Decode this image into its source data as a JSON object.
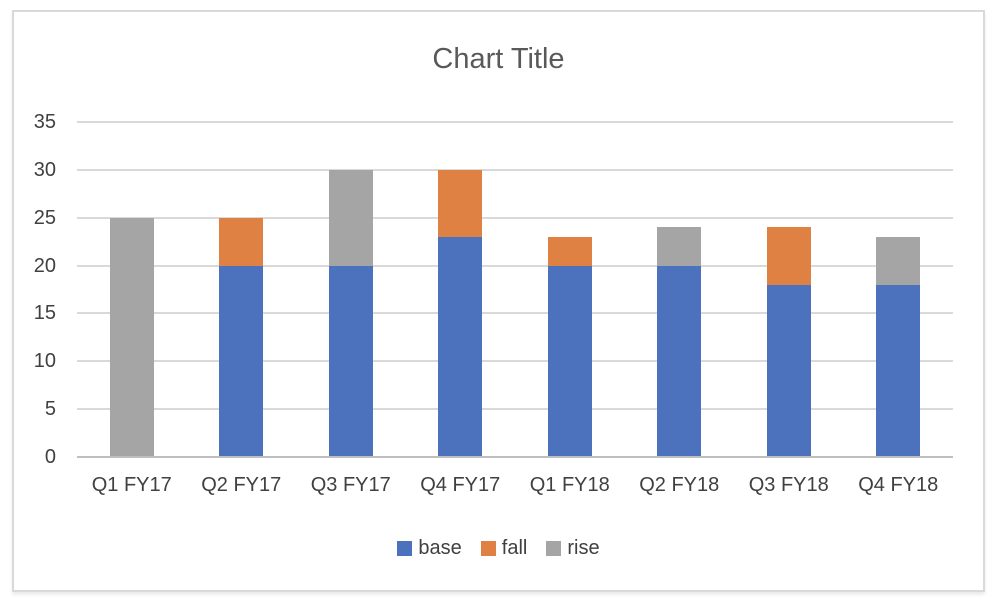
{
  "page": {
    "background": "#ffffff",
    "frame_border_color": "#d9d9d9"
  },
  "chart_data": {
    "type": "bar",
    "stacked": true,
    "title": "Chart Title",
    "title_color": "#595959",
    "label_color": "#404040",
    "gridline_color": "#d9d9d9",
    "axis_line_color": "#bfbfbf",
    "categories": [
      "Q1 FY17",
      "Q2 FY17",
      "Q3 FY17",
      "Q4 FY17",
      "Q1 FY18",
      "Q2 FY18",
      "Q3 FY18",
      "Q4 FY18"
    ],
    "series": [
      {
        "name": "base",
        "color": "#4c72be",
        "values": [
          0,
          20,
          20,
          23,
          20,
          20,
          18,
          18
        ]
      },
      {
        "name": "fall",
        "color": "#e08144",
        "values": [
          0,
          5,
          0,
          7,
          3,
          0,
          6,
          0
        ]
      },
      {
        "name": "rise",
        "color": "#a5a5a5",
        "values": [
          25,
          0,
          10,
          0,
          0,
          4,
          0,
          5
        ]
      }
    ],
    "totals": [
      25,
      25,
      30,
      30,
      23,
      24,
      24,
      23
    ],
    "xlabel": "",
    "ylabel": "",
    "ylim": [
      0,
      35
    ],
    "yticks": [
      0,
      5,
      10,
      15,
      20,
      25,
      30,
      35
    ],
    "grid": true,
    "legend_position": "bottom",
    "legend_labels": [
      "base",
      "fall",
      "rise"
    ]
  }
}
